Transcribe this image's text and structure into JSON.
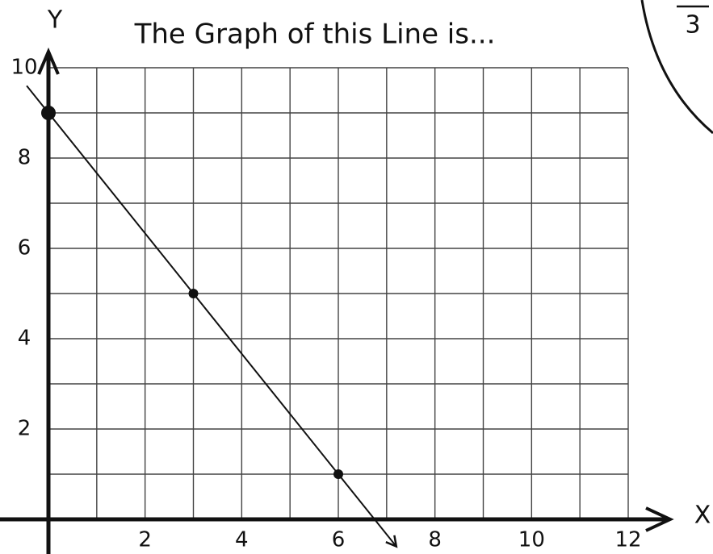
{
  "chart_data": {
    "type": "line",
    "title": "The Graph of this Line is...",
    "xlabel": "X",
    "ylabel": "Y",
    "annotation": "3",
    "x": [
      0,
      3,
      6
    ],
    "values": [
      9,
      5,
      1
    ],
    "color": "#111111",
    "xlim": [
      0,
      12
    ],
    "ylim": [
      0,
      10
    ],
    "xticks": [
      2,
      4,
      6,
      8,
      10,
      12
    ],
    "yticks": [
      2,
      4,
      6,
      8,
      10
    ],
    "xgrid": [
      0,
      1,
      2,
      3,
      4,
      5,
      6,
      7,
      8,
      9,
      10,
      11,
      12
    ],
    "ygrid": [
      0,
      1,
      2,
      3,
      4,
      5,
      6,
      7,
      8,
      9,
      10
    ],
    "grid": true
  }
}
